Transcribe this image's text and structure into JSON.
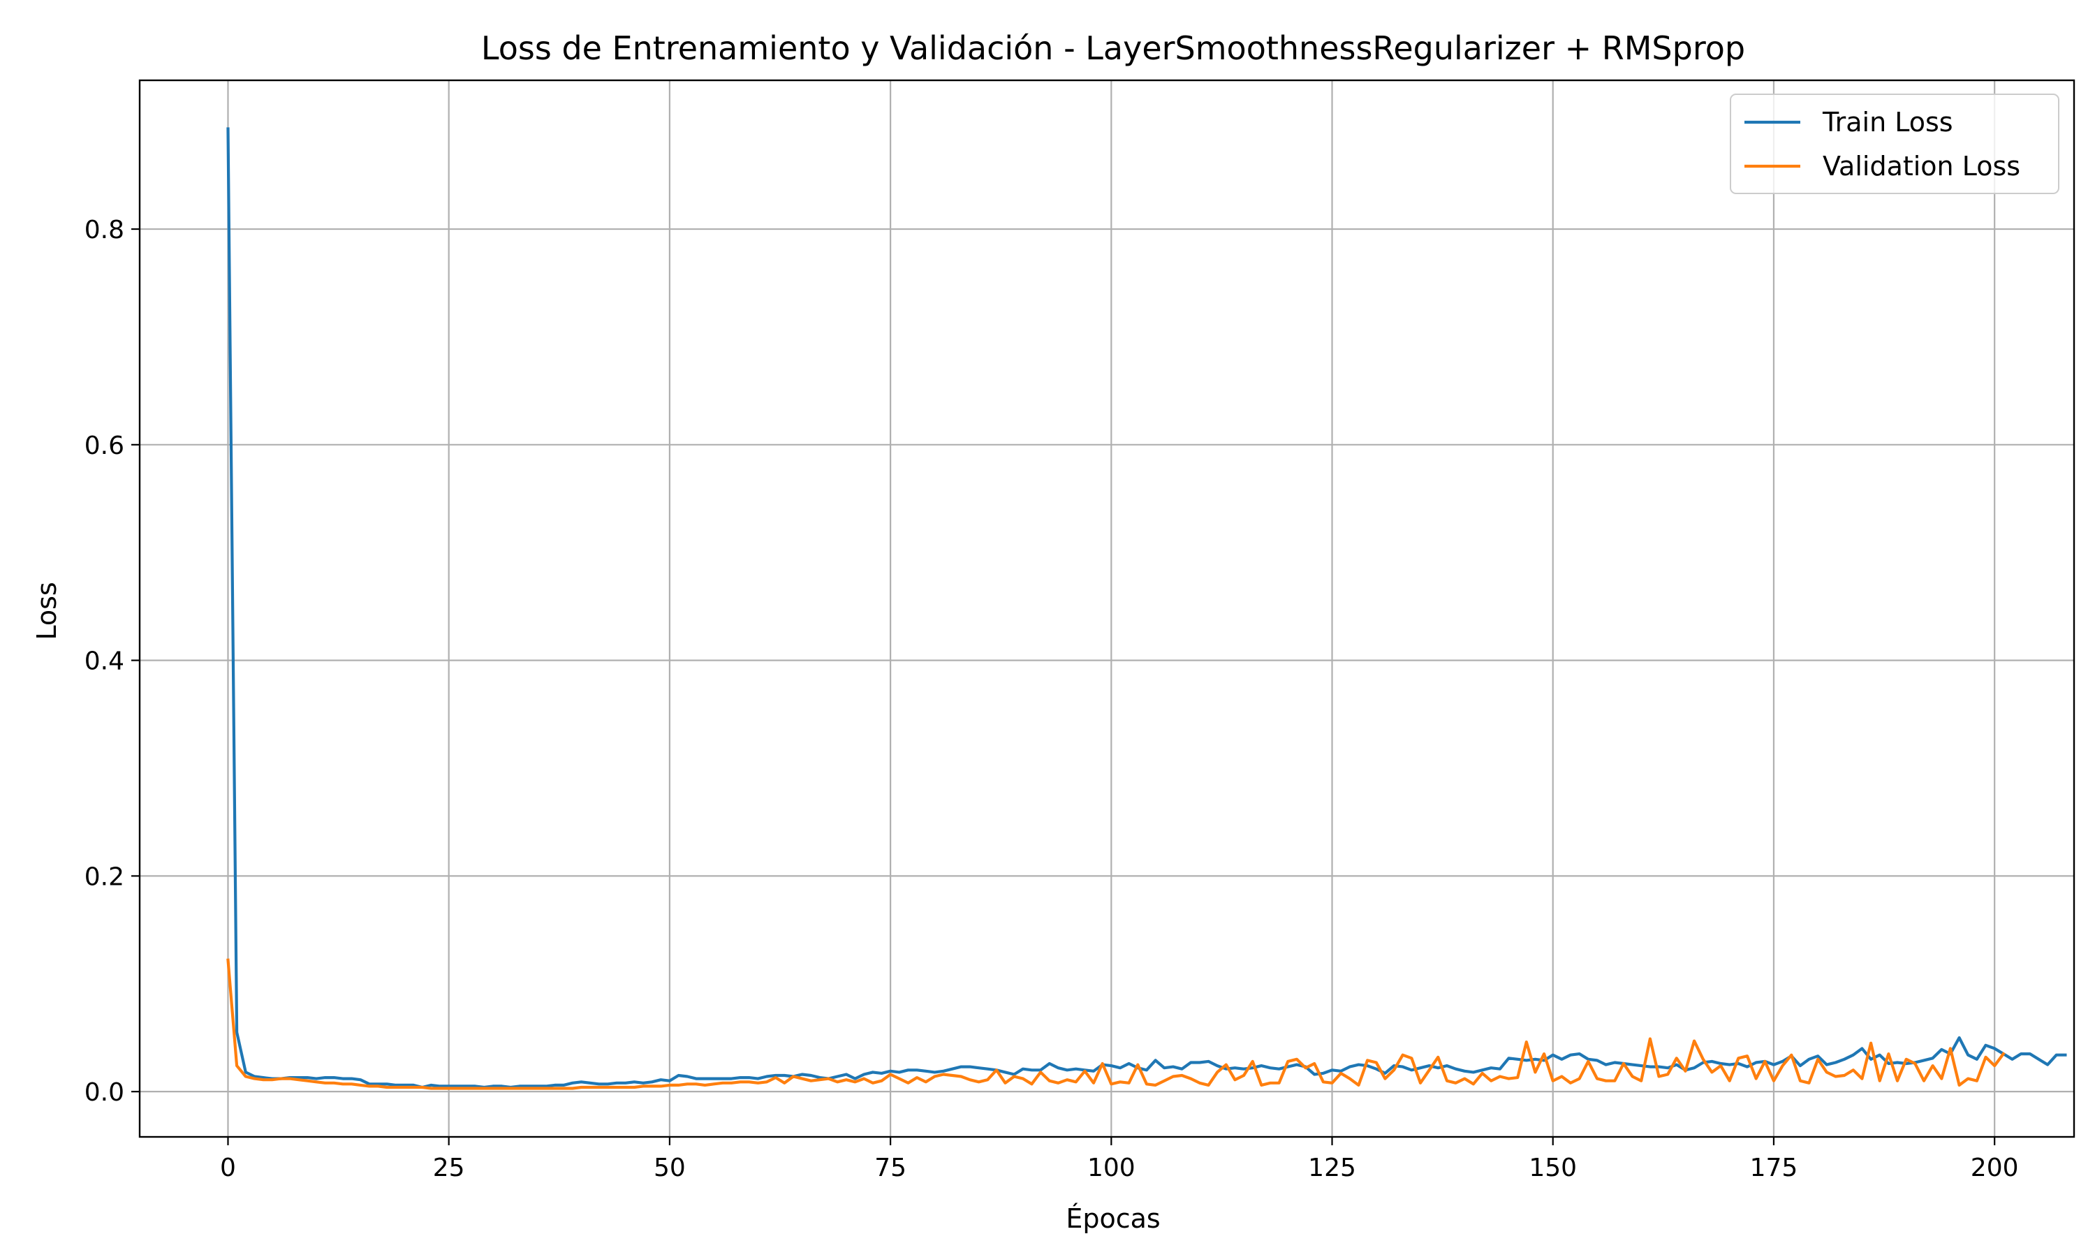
{
  "chart_data": {
    "type": "line",
    "title": "Loss de Entrenamiento y Validación - LayerSmoothnessRegularizer + RMSprop",
    "xlabel": "Épocas",
    "ylabel": "Loss",
    "xlim": [
      -10,
      209
    ],
    "ylim": [
      -0.042,
      0.938
    ],
    "xticks": [
      0,
      25,
      50,
      75,
      100,
      125,
      150,
      175,
      200
    ],
    "xtick_labels": [
      "0",
      "25",
      "50",
      "75",
      "100",
      "125",
      "150",
      "175",
      "200"
    ],
    "yticks": [
      0.0,
      0.2,
      0.4,
      0.6,
      0.8
    ],
    "ytick_labels": [
      "0.0",
      "0.2",
      "0.4",
      "0.6",
      "0.8"
    ],
    "grid": true,
    "legend_position": "top-right",
    "series": [
      {
        "name": "Train Loss",
        "color": "#1f77b4",
        "values": [
          0.893,
          0.055,
          0.018,
          0.014,
          0.013,
          0.012,
          0.012,
          0.013,
          0.013,
          0.013,
          0.012,
          0.013,
          0.013,
          0.012,
          0.012,
          0.011,
          0.007,
          0.007,
          0.007,
          0.006,
          0.006,
          0.006,
          0.004,
          0.006,
          0.005,
          0.005,
          0.005,
          0.005,
          0.005,
          0.004,
          0.005,
          0.005,
          0.004,
          0.005,
          0.005,
          0.005,
          0.005,
          0.006,
          0.006,
          0.008,
          0.009,
          0.008,
          0.007,
          0.007,
          0.008,
          0.008,
          0.009,
          0.008,
          0.009,
          0.011,
          0.01,
          0.015,
          0.014,
          0.012,
          0.012,
          0.012,
          0.012,
          0.012,
          0.013,
          0.013,
          0.012,
          0.014,
          0.015,
          0.015,
          0.014,
          0.016,
          0.015,
          0.013,
          0.012,
          0.014,
          0.016,
          0.012,
          0.016,
          0.018,
          0.017,
          0.019,
          0.018,
          0.02,
          0.02,
          0.019,
          0.018,
          0.019,
          0.021,
          0.023,
          0.023,
          0.022,
          0.021,
          0.02,
          0.018,
          0.016,
          0.021,
          0.02,
          0.02,
          0.026,
          0.022,
          0.02,
          0.021,
          0.02,
          0.019,
          0.025,
          0.024,
          0.022,
          0.026,
          0.022,
          0.02,
          0.029,
          0.022,
          0.023,
          0.021,
          0.027,
          0.027,
          0.028,
          0.024,
          0.021,
          0.022,
          0.021,
          0.022,
          0.024,
          0.022,
          0.021,
          0.023,
          0.025,
          0.023,
          0.016,
          0.017,
          0.02,
          0.019,
          0.023,
          0.025,
          0.024,
          0.021,
          0.017,
          0.024,
          0.023,
          0.02,
          0.022,
          0.024,
          0.022,
          0.024,
          0.021,
          0.019,
          0.018,
          0.02,
          0.022,
          0.021,
          0.031,
          0.03,
          0.029,
          0.03,
          0.029,
          0.034,
          0.03,
          0.034,
          0.035,
          0.03,
          0.029,
          0.025,
          0.027,
          0.026,
          0.025,
          0.024,
          0.023,
          0.023,
          0.022,
          0.025,
          0.02,
          0.022,
          0.027,
          0.028,
          0.026,
          0.025,
          0.026,
          0.023,
          0.027,
          0.028,
          0.025,
          0.028,
          0.033,
          0.024,
          0.03,
          0.033,
          0.025,
          0.027,
          0.03,
          0.034,
          0.04,
          0.03,
          0.034,
          0.026,
          0.027,
          0.026,
          0.027,
          0.029,
          0.031,
          0.039,
          0.035,
          0.05,
          0.034,
          0.03,
          0.043,
          0.04,
          0.035,
          0.03,
          0.035,
          0.035,
          0.03,
          0.025,
          0.034,
          0.034
        ]
      },
      {
        "name": "Validation Loss",
        "color": "#ff7f0e",
        "values": [
          0.122,
          0.024,
          0.014,
          0.012,
          0.011,
          0.011,
          0.012,
          0.012,
          0.011,
          0.01,
          0.009,
          0.008,
          0.008,
          0.007,
          0.007,
          0.006,
          0.005,
          0.005,
          0.004,
          0.004,
          0.004,
          0.004,
          0.004,
          0.003,
          0.003,
          0.003,
          0.003,
          0.003,
          0.003,
          0.003,
          0.003,
          0.003,
          0.003,
          0.003,
          0.003,
          0.003,
          0.003,
          0.003,
          0.003,
          0.003,
          0.004,
          0.004,
          0.004,
          0.004,
          0.004,
          0.004,
          0.004,
          0.005,
          0.005,
          0.005,
          0.006,
          0.006,
          0.007,
          0.007,
          0.006,
          0.007,
          0.008,
          0.008,
          0.009,
          0.009,
          0.008,
          0.009,
          0.013,
          0.008,
          0.014,
          0.012,
          0.01,
          0.011,
          0.012,
          0.009,
          0.011,
          0.009,
          0.012,
          0.008,
          0.01,
          0.016,
          0.012,
          0.008,
          0.013,
          0.009,
          0.014,
          0.016,
          0.015,
          0.014,
          0.011,
          0.009,
          0.011,
          0.02,
          0.008,
          0.014,
          0.012,
          0.007,
          0.018,
          0.01,
          0.008,
          0.011,
          0.009,
          0.019,
          0.008,
          0.026,
          0.007,
          0.009,
          0.008,
          0.025,
          0.007,
          0.006,
          0.01,
          0.014,
          0.015,
          0.012,
          0.008,
          0.006,
          0.018,
          0.025,
          0.011,
          0.015,
          0.028,
          0.006,
          0.008,
          0.008,
          0.028,
          0.03,
          0.022,
          0.026,
          0.009,
          0.008,
          0.017,
          0.012,
          0.006,
          0.029,
          0.027,
          0.012,
          0.02,
          0.034,
          0.031,
          0.008,
          0.02,
          0.032,
          0.01,
          0.008,
          0.012,
          0.007,
          0.017,
          0.01,
          0.014,
          0.012,
          0.013,
          0.046,
          0.018,
          0.035,
          0.01,
          0.014,
          0.008,
          0.012,
          0.028,
          0.012,
          0.01,
          0.01,
          0.026,
          0.014,
          0.01,
          0.049,
          0.014,
          0.016,
          0.031,
          0.019,
          0.047,
          0.03,
          0.018,
          0.024,
          0.01,
          0.031,
          0.033,
          0.012,
          0.028,
          0.01,
          0.024,
          0.034,
          0.01,
          0.008,
          0.03,
          0.018,
          0.014,
          0.015,
          0.02,
          0.012,
          0.045,
          0.01,
          0.035,
          0.01,
          0.03,
          0.026,
          0.01,
          0.024,
          0.012,
          0.04,
          0.006,
          0.012,
          0.01,
          0.032,
          0.024,
          0.035
        ]
      }
    ]
  }
}
